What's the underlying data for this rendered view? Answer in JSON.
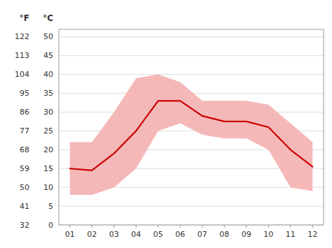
{
  "chart_data": {
    "type": "line",
    "x": [
      1,
      2,
      3,
      4,
      5,
      6,
      7,
      8,
      9,
      10,
      11,
      12
    ],
    "xlim": [
      0.5,
      12.5
    ],
    "xticks": [
      {
        "value": 1,
        "label": "01"
      },
      {
        "value": 2,
        "label": "02"
      },
      {
        "value": 3,
        "label": "03"
      },
      {
        "value": 4,
        "label": "04"
      },
      {
        "value": 5,
        "label": "05"
      },
      {
        "value": 6,
        "label": "06"
      },
      {
        "value": 7,
        "label": "07"
      },
      {
        "value": 8,
        "label": "08"
      },
      {
        "value": 9,
        "label": "09"
      },
      {
        "value": 10,
        "label": "10"
      },
      {
        "value": 11,
        "label": "11"
      },
      {
        "value": 12,
        "label": "12"
      }
    ],
    "ylim": [
      0,
      52
    ],
    "yticks": [
      0,
      5,
      10,
      15,
      20,
      25,
      30,
      35,
      40,
      45,
      50
    ],
    "y_label": "°C",
    "y2lim": [
      32,
      125.6
    ],
    "y2ticks": [
      32,
      41,
      50,
      59,
      68,
      77,
      86,
      95,
      104,
      113,
      122
    ],
    "y2_label": "°F",
    "grid": true,
    "series": [
      {
        "type": "area",
        "color": "#f5b8b8",
        "values": [
          22,
          22,
          30,
          39,
          40,
          38,
          33,
          33,
          33,
          32,
          27,
          22
        ],
        "low": [
          8,
          8,
          10,
          15,
          25,
          27,
          24,
          23,
          23,
          20,
          10,
          9
        ]
      },
      {
        "type": "line",
        "color": "#cc0000",
        "values": [
          15,
          14.5,
          19,
          25,
          33,
          33,
          29,
          27.5,
          27.5,
          26,
          20,
          15.5
        ]
      }
    ]
  }
}
